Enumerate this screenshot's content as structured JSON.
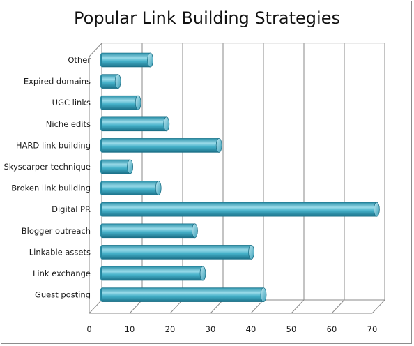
{
  "chart_data": {
    "type": "bar",
    "orientation": "horizontal",
    "title": "Popular Link Building Strategies",
    "categories": [
      "Other",
      "Expired domains",
      "UGC links",
      "Niche edits",
      "HARD link building",
      "Skyscarper technique",
      "Broken link building",
      "Digital PR",
      "Blogger outreach",
      "Linkable assets",
      "Link exchange",
      "Guest posting"
    ],
    "values": [
      12,
      4,
      9,
      16,
      29,
      7,
      14,
      68,
      23,
      37,
      25,
      40
    ],
    "xlim": [
      0,
      70
    ],
    "xticks": [
      "0",
      "10",
      "20",
      "30",
      "40",
      "50",
      "60",
      "70"
    ],
    "grid": "vertical",
    "legend": "none",
    "colors": {
      "bar": "#3aa7c0",
      "bar_light": "#8fd6e6",
      "bar_dark": "#1d7a90",
      "grid": "#8a8a8a"
    }
  }
}
